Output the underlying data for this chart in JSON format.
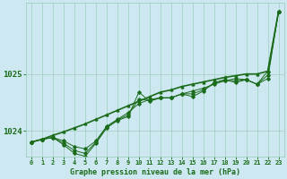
{
  "title": "Graphe pression niveau de la mer (hPa)",
  "background_color": "#cde8f0",
  "grid_color": "#9ecfbe",
  "line_color": "#1a6b1a",
  "xlim": [
    -0.5,
    23.5
  ],
  "ylim": [
    1023.55,
    1026.25
  ],
  "yticks": [
    1024,
    1025
  ],
  "xticks": [
    0,
    1,
    2,
    3,
    4,
    5,
    6,
    7,
    8,
    9,
    10,
    11,
    12,
    13,
    14,
    15,
    16,
    17,
    18,
    19,
    20,
    21,
    22,
    23
  ],
  "series": [
    [
      1023.8,
      1023.85,
      1023.88,
      1023.75,
      1023.6,
      1023.55,
      1023.78,
      1024.05,
      1024.18,
      1024.25,
      1024.68,
      1024.52,
      1024.58,
      1024.58,
      1024.65,
      1024.6,
      1024.7,
      1024.85,
      1024.9,
      1024.85,
      1024.9,
      1024.82,
      1025.05,
      1026.1
    ],
    [
      1023.8,
      1023.85,
      1023.88,
      1023.82,
      1023.72,
      1023.68,
      1023.82,
      1024.08,
      1024.2,
      1024.32,
      1024.48,
      1024.55,
      1024.58,
      1024.58,
      1024.65,
      1024.7,
      1024.75,
      1024.82,
      1024.88,
      1024.92,
      1024.9,
      1024.82,
      1024.92,
      1026.1
    ],
    [
      1023.8,
      1023.85,
      1023.88,
      1023.78,
      1023.65,
      1023.6,
      1023.8,
      1024.06,
      1024.19,
      1024.28,
      1024.56,
      1024.53,
      1024.58,
      1024.58,
      1024.65,
      1024.65,
      1024.72,
      1024.83,
      1024.89,
      1024.88,
      1024.9,
      1024.82,
      1024.98,
      1026.1
    ]
  ],
  "series_smooth": [
    1023.8,
    1023.85,
    1023.92,
    1023.98,
    1024.05,
    1024.12,
    1024.2,
    1024.28,
    1024.36,
    1024.44,
    1024.52,
    1024.6,
    1024.68,
    1024.72,
    1024.78,
    1024.82,
    1024.86,
    1024.9,
    1024.94,
    1024.97,
    1025.0,
    1025.0,
    1025.05,
    1026.1
  ]
}
